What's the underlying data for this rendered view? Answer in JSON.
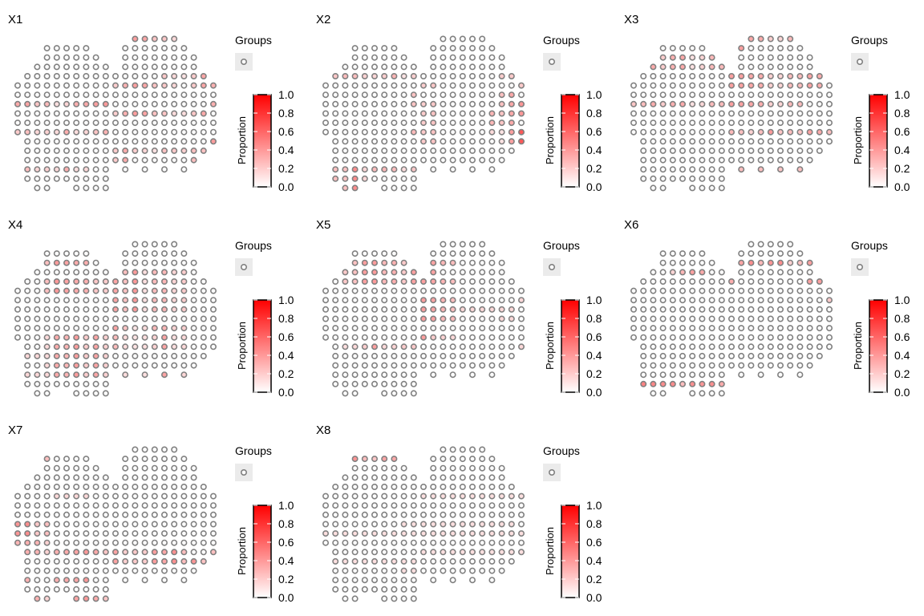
{
  "colors": {
    "spot_outline": "#808080",
    "scale_low": "#ffffff",
    "scale_high": "#ff0000",
    "legend_key_bg": "#ebebeb"
  },
  "legend": {
    "title": "Groups",
    "colorbar_label": "Proportion",
    "ticks": [
      "0.0",
      "0.2",
      "0.4",
      "0.6",
      "0.8",
      "1.0"
    ]
  },
  "chart_data": [
    {
      "type": "heatmap",
      "title": "X1",
      "value_range": [
        0,
        1
      ],
      "color_scale": "white-to-red",
      "spot_values": "mostly 0.0-0.3; scattered higher values on the left and right lobes"
    },
    {
      "type": "heatmap",
      "title": "X2",
      "value_range": [
        0,
        1
      ],
      "color_scale": "white-to-red",
      "spot_values": "up to ~0.6 on the right edge of the right lobe and the lower-left of the left lobe"
    },
    {
      "type": "heatmap",
      "title": "X3",
      "value_range": [
        0,
        1
      ],
      "color_scale": "white-to-red",
      "spot_values": "mostly 0.0-0.3; sparse higher spots"
    },
    {
      "type": "heatmap",
      "title": "X4",
      "value_range": [
        0,
        1
      ],
      "color_scale": "white-to-red",
      "spot_values": "~0.2-0.4 across the centre of both lobes"
    },
    {
      "type": "heatmap",
      "title": "X5",
      "value_range": [
        0,
        1
      ],
      "color_scale": "white-to-red",
      "spot_values": "~0.2-0.4 in the left lobe centre, lower elsewhere"
    },
    {
      "type": "heatmap",
      "title": "X6",
      "value_range": [
        0,
        1
      ],
      "color_scale": "white-to-red",
      "spot_values": "mostly near 0; a few spots up to ~0.5 at the top and right edge"
    },
    {
      "type": "heatmap",
      "title": "X7",
      "value_range": [
        0,
        1
      ],
      "color_scale": "white-to-red",
      "spot_values": "~0.2-0.4 along the left border and the lower left lobe"
    },
    {
      "type": "heatmap",
      "title": "X8",
      "value_range": [
        0,
        1
      ],
      "color_scale": "white-to-red",
      "spot_values": "~0.2-0.4 at the top of the left lobe, scattered elsewhere"
    }
  ]
}
